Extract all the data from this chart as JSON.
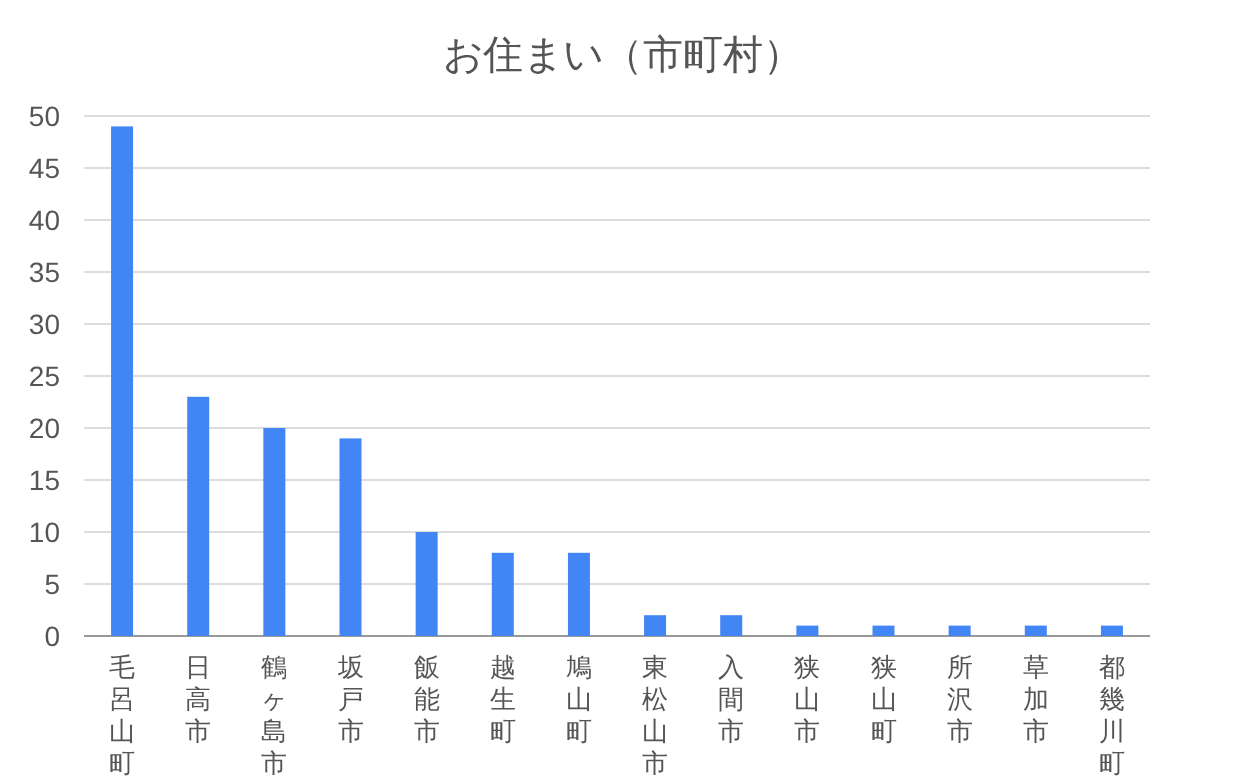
{
  "chart_data": {
    "type": "bar",
    "title": "お住まい（市町村）",
    "categories": [
      "毛呂山町",
      "日高市",
      "鶴ヶ島市",
      "坂戸市",
      "飯能市",
      "越生町",
      "鳩山町",
      "東松山市",
      "入間市",
      "狭山市",
      "狭山町",
      "所沢市",
      "草加市",
      "都幾川町"
    ],
    "values": [
      49,
      23,
      20,
      19,
      10,
      8,
      8,
      2,
      2,
      1,
      1,
      1,
      1,
      1
    ],
    "color": "#4285f4",
    "ylim": [
      0,
      50
    ],
    "yticks": [
      0,
      5,
      10,
      15,
      20,
      25,
      30,
      35,
      40,
      45,
      50
    ],
    "grid": "y"
  }
}
